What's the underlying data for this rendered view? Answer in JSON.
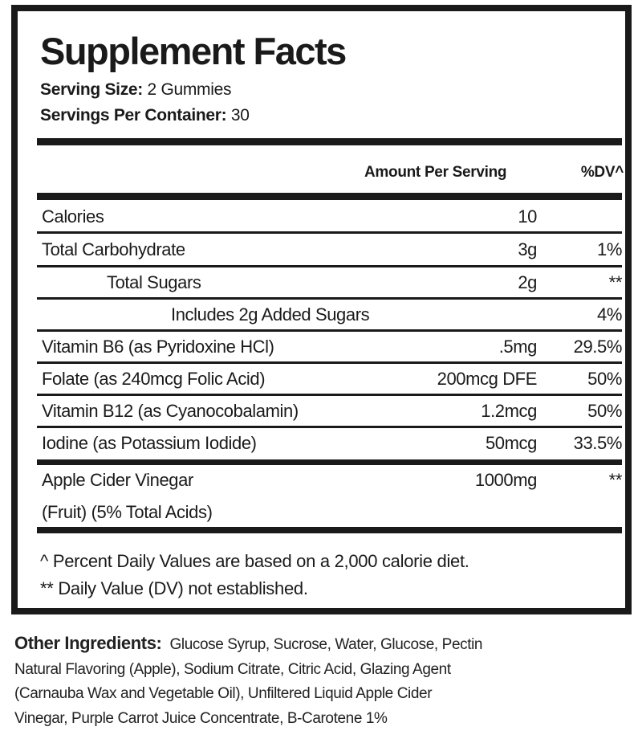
{
  "title": "Supplement Facts",
  "serving_size": {
    "label": "Serving Size:",
    "value": "2 Gummies"
  },
  "servings_per_container": {
    "label": "Servings Per Container:",
    "value": "30"
  },
  "header": {
    "amount": "Amount Per Serving",
    "dv": "%DV^"
  },
  "rows": [
    {
      "name": "Calories",
      "amount": "10",
      "dv": ""
    },
    {
      "name": "Total Carbohydrate",
      "amount": "3g",
      "dv": "1%"
    },
    {
      "name": "Total Sugars",
      "amount": "2g",
      "dv": "**"
    },
    {
      "name": "Includes 2g Added Sugars",
      "amount": "",
      "dv": "4%"
    },
    {
      "name": "Vitamin B6 (as Pyridoxine HCl)",
      "amount": ".5mg",
      "dv": "29.5%"
    },
    {
      "name": "Folate (as 240mcg Folic Acid)",
      "amount": "200mcg DFE",
      "dv": "50%"
    },
    {
      "name": "Vitamin B12 (as Cyanocobalamin)",
      "amount": "1.2mcg",
      "dv": "50%"
    },
    {
      "name": "Iodine (as Potassium Iodide)",
      "amount": "50mcg",
      "dv": "33.5%"
    },
    {
      "name": "Apple Cider Vinegar",
      "name_line2": "(Fruit) (5% Total Acids)",
      "amount": "1000mg",
      "dv": "**"
    }
  ],
  "footnotes": [
    "^ Percent Daily Values are based on a 2,000 calorie diet.",
    "** Daily Value (DV) not established."
  ],
  "other_ingredients": {
    "label": "Other Ingredients:",
    "lines": [
      "Glucose Syrup, Sucrose, Water, Glucose, Pectin",
      "Natural Flavoring (Apple), Sodium Citrate, Citric Acid, Glazing Agent",
      "(Carnauba Wax and Vegetable Oil), Unfiltered Liquid Apple Cider",
      "Vinegar, Purple Carrot Juice Concentrate, B-Carotene 1%"
    ]
  }
}
